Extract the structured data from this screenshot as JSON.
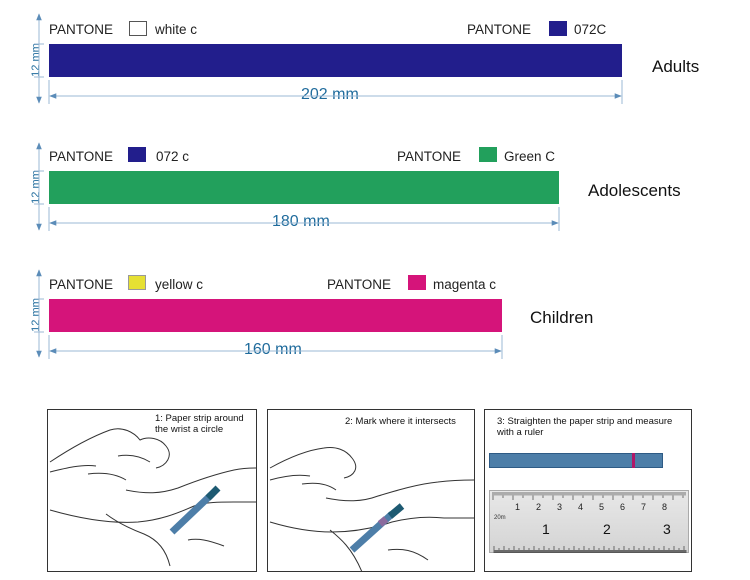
{
  "bands": [
    {
      "label_left_prefix": "PANTONE",
      "label_left_color": "white c",
      "label_right_prefix": "PANTONE",
      "label_right_color": "072C",
      "height_label": "12 mm",
      "length_label": "202 mm",
      "group": "Adults",
      "fill": "#221e8c",
      "swatch_left": "#ffffff",
      "swatch_right": "#221e8c"
    },
    {
      "label_left_prefix": "PANTONE",
      "label_left_color": "072 c",
      "label_right_prefix": "PANTONE",
      "label_right_color": "Green C",
      "height_label": "12 mm",
      "length_label": "180 mm",
      "group": "Adolescents",
      "fill": "#22a05c",
      "swatch_left": "#221e8c",
      "swatch_right": "#22a05c"
    },
    {
      "label_left_prefix": "PANTONE",
      "label_left_color": "yellow c",
      "label_right_prefix": "PANTONE",
      "label_right_color": "magenta c",
      "height_label": "12 mm",
      "length_label": "160 mm",
      "group": "Children",
      "fill": "#d5147a",
      "swatch_left": "#e6e033",
      "swatch_right": "#d5147a"
    }
  ],
  "steps": [
    {
      "caption": "1: Paper strip around the wrist a circle"
    },
    {
      "caption": "2: Mark where it intersects"
    },
    {
      "caption": "3: Straighten the paper strip and measure with a ruler"
    }
  ],
  "ruler": {
    "numbers": [
      "1",
      "2",
      "3"
    ],
    "top_numbers": [
      "1",
      "2",
      "3",
      "4",
      "5",
      "6",
      "7",
      "8"
    ],
    "unit_label": "20m"
  },
  "colors": {
    "dimension": "#1f6b9c",
    "strip": "#4d7ea8",
    "mark": "#d5147a"
  }
}
